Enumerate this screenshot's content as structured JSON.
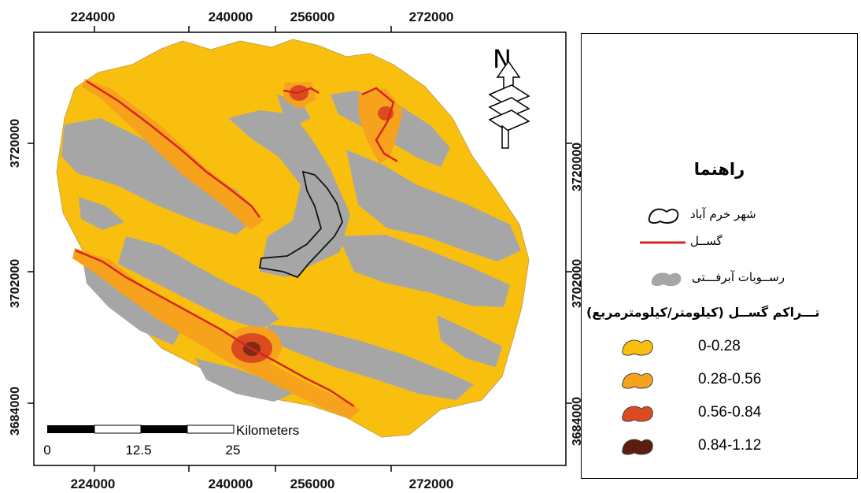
{
  "map": {
    "x_ticks": [
      "224000",
      "240000",
      "256000",
      "272000"
    ],
    "y_ticks": [
      "3720000",
      "3702000",
      "3684000"
    ],
    "scale_bar": {
      "labels": [
        "0",
        "12.5",
        "25"
      ],
      "unit": "Kilometers"
    },
    "north_arrow_label": "N",
    "colors": {
      "density_0_028": "#f9bf0f",
      "density_028_056": "#f7a21d",
      "density_056_084": "#dc4a1f",
      "density_084_112": "#5c1d0f",
      "alluvium": "#a7a6a6",
      "fault": "#d6261e",
      "city_outline": "#111111"
    }
  },
  "legend": {
    "title": "راهنما",
    "items": [
      {
        "label": "شهر خرم آباد",
        "symbol": "city-outline-icon"
      },
      {
        "label": "گســل",
        "symbol": "fault-line-icon"
      },
      {
        "label": "رســوبات آبرفـــتی",
        "symbol": "alluvium-icon"
      }
    ],
    "density_heading": "تـــراکم گســل (کیلومتر/کیلومترمربع)",
    "density_classes": [
      {
        "label": "0-0.28",
        "color": "#f9bf0f"
      },
      {
        "label": "0.28-0.56",
        "color": "#f7a21d"
      },
      {
        "label": "0.56-0.84",
        "color": "#dc4a1f"
      },
      {
        "label": "0.84-1.12",
        "color": "#5c1d0f"
      }
    ]
  }
}
